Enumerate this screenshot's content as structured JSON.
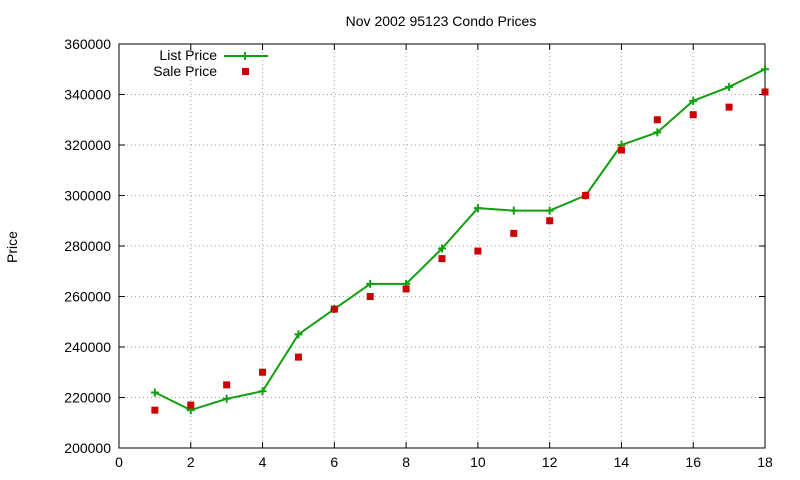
{
  "chart_data": {
    "type": "line",
    "title": "Nov 2002 95123 Condo Prices",
    "xlabel": "",
    "ylabel": "Price",
    "xlim": [
      0,
      18
    ],
    "ylim": [
      200000,
      360000
    ],
    "xticks": [
      0,
      2,
      4,
      6,
      8,
      10,
      12,
      14,
      16,
      18
    ],
    "yticks": [
      200000,
      220000,
      240000,
      260000,
      280000,
      300000,
      320000,
      340000,
      360000
    ],
    "grid": true,
    "legend_position": "top-left",
    "x": [
      1,
      2,
      3,
      4,
      5,
      6,
      7,
      8,
      9,
      10,
      11,
      12,
      13,
      14,
      15,
      16,
      17,
      18
    ],
    "series": [
      {
        "name": "List Price",
        "style": "line-with-plus-markers",
        "color": "#10a010",
        "values": [
          222000,
          215000,
          219500,
          222500,
          245000,
          255000,
          265000,
          265000,
          279000,
          295000,
          294000,
          294000,
          300000,
          320000,
          325000,
          337500,
          343000,
          350000
        ]
      },
      {
        "name": "Sale Price",
        "style": "square-markers",
        "color": "#cc0000",
        "values": [
          215000,
          217000,
          225000,
          230000,
          236000,
          255000,
          260000,
          263000,
          275000,
          278000,
          285000,
          290000,
          300000,
          318000,
          330000,
          332000,
          335000,
          341000
        ]
      }
    ]
  }
}
